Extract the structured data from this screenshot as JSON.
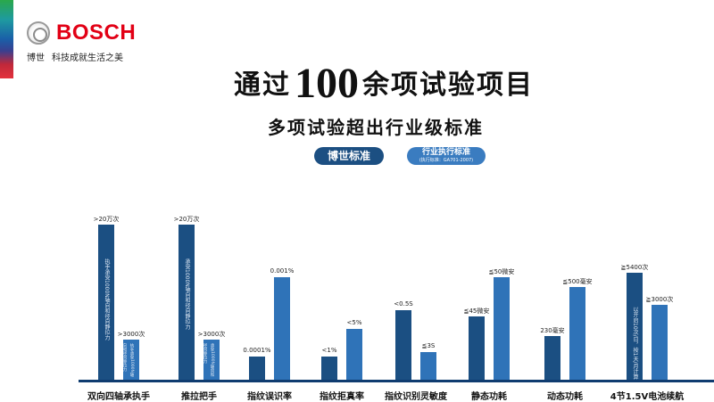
{
  "brand": {
    "name": "BOSCH",
    "chinese_name": "博世",
    "slogan": "科技成就生活之美"
  },
  "header": {
    "title_prefix": "通过",
    "title_number": "100",
    "title_suffix": "余项试验项目",
    "subtitle": "多项试验超出行业级标准"
  },
  "legend": {
    "bosch": {
      "label": "博世标准",
      "color": "#1b4f82"
    },
    "industry": {
      "label": "行业执行标准",
      "note": "(执行标准：GA701-2007)",
      "color": "#2f73b8"
    }
  },
  "chart_data": {
    "type": "bar",
    "categories": [
      "双向四轴承执手",
      "推拉把手",
      "指纹误识率",
      "指纹拒真率",
      "指纹识别灵敏度",
      "静态功耗",
      "动态功耗",
      "4节1.5V电池续航"
    ],
    "series": [
      {
        "name": "博世标准",
        "color": "#1b4f82",
        "labels": [
          ">20万次",
          ">20万次",
          "0.0001%",
          "<1%",
          "<0.5S",
          "≦45微安",
          "230毫安",
          "≧5400次"
        ],
        "relative_heights": [
          100,
          100,
          15,
          15,
          45,
          41,
          28,
          69
        ],
        "notes": [
          "执手承受1000N轴向和径向静拉力",
          "承受1000N轴向和径向静拉力",
          "",
          "",
          "",
          "",
          "",
          "以开启10次/日，按1天/月计算"
        ]
      },
      {
        "name": "行业执行标准",
        "color": "#2f73b8",
        "labels": [
          ">3000次",
          ">3000次",
          "0.001%",
          "<5%",
          "≦3S",
          "≦50微安",
          "≦500毫安",
          "≧3000次"
        ],
        "relative_heights": [
          26,
          26,
          66,
          33,
          18,
          66,
          60,
          48
        ],
        "notes": [
          "执手承受1000N轴向和径向静拉力",
          "承受1000N轴向和径向静拉力",
          "",
          "",
          "",
          "",
          "",
          ""
        ]
      }
    ],
    "grid": false,
    "legend_placement": "top-center"
  }
}
